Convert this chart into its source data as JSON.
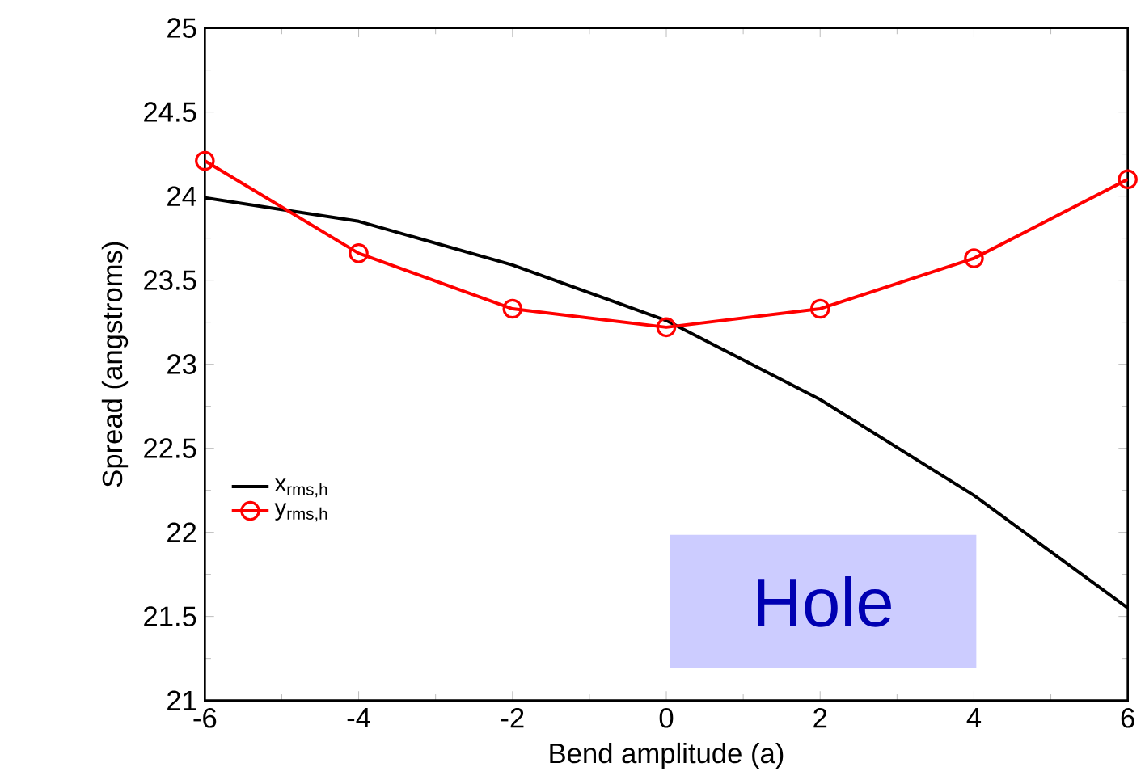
{
  "chart_data": {
    "type": "line",
    "xlabel": "Bend amplitude (a)",
    "ylabel": "Spread (angstroms)",
    "x": [
      -6,
      -4,
      -2,
      0,
      2,
      4,
      6
    ],
    "series": [
      {
        "name": "x$_{rms,h}$",
        "color": "#000000",
        "marker": "none",
        "values": [
          23.99,
          23.85,
          23.59,
          23.26,
          22.79,
          22.22,
          21.55
        ]
      },
      {
        "name": "y$_{rms,h}$",
        "color": "#ff0000",
        "marker": "circle",
        "values": [
          24.21,
          23.66,
          23.33,
          23.22,
          23.33,
          23.63,
          24.1
        ]
      }
    ],
    "xlim": [
      -6,
      6
    ],
    "ylim": [
      21,
      25
    ],
    "xticks": [
      -6,
      -4,
      -2,
      0,
      2,
      4,
      6
    ],
    "yticks": [
      21,
      21.5,
      22,
      22.5,
      23,
      23.5,
      24,
      24.5,
      25
    ],
    "legend": "left",
    "grid": false,
    "annotations": [
      "Hole"
    ]
  }
}
